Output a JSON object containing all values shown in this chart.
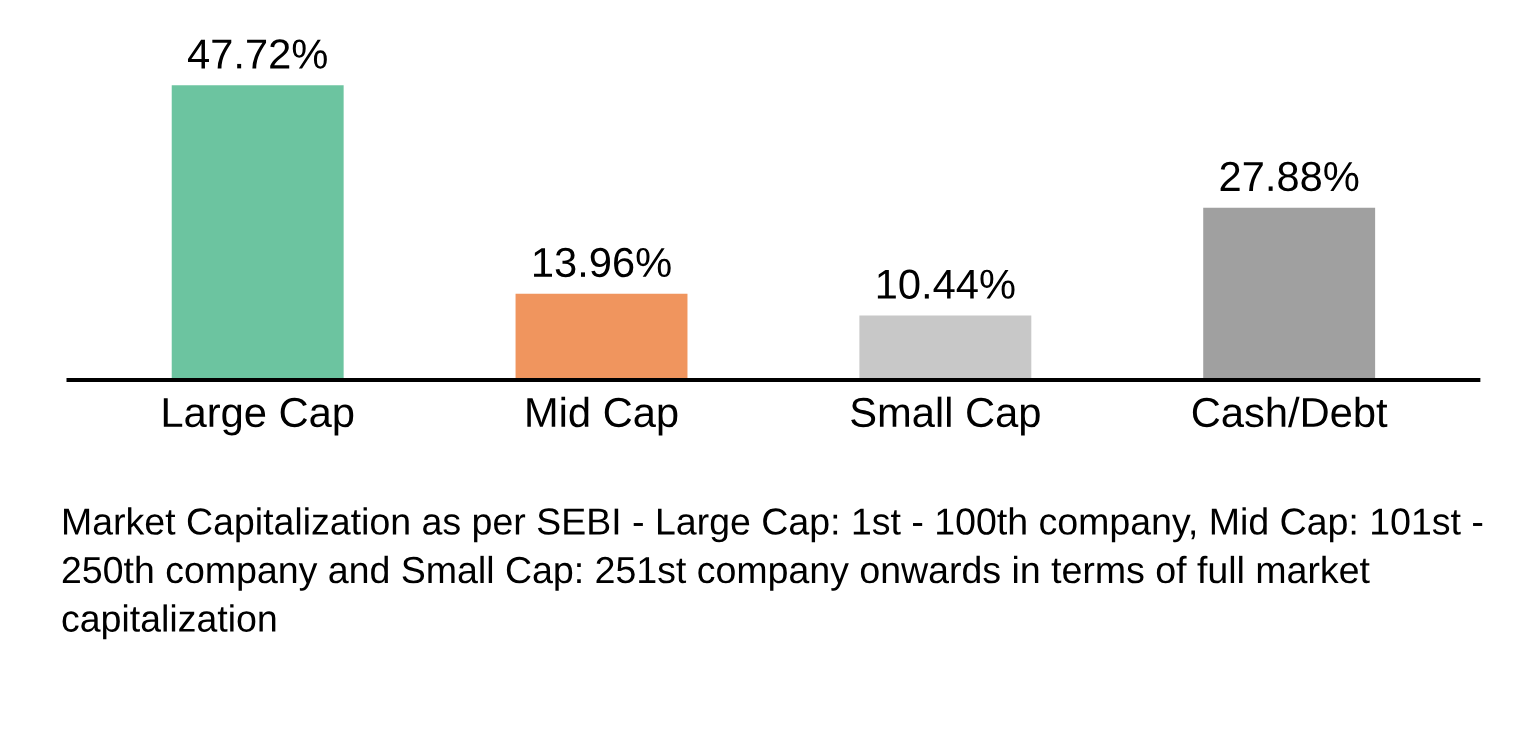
{
  "chart_data": {
    "type": "bar",
    "categories": [
      "Large Cap",
      "Mid Cap",
      "Small Cap",
      "Cash/Debt"
    ],
    "values": [
      47.72,
      13.96,
      10.44,
      27.88
    ],
    "colors": [
      "#6cc4a0",
      "#f0955e",
      "#c8c8c8",
      "#a0a0a0"
    ],
    "value_labels": [
      "47.72%",
      "13.96%",
      "10.44%",
      "27.88%"
    ],
    "grid": false,
    "legend": false,
    "annotations": [
      "Market Capitalization as per SEBI - Large Cap: 1st - 100th company, Mid Cap: 101st - 250th company and Small Cap: 251st company onwards in terms of full market capitalization"
    ]
  }
}
